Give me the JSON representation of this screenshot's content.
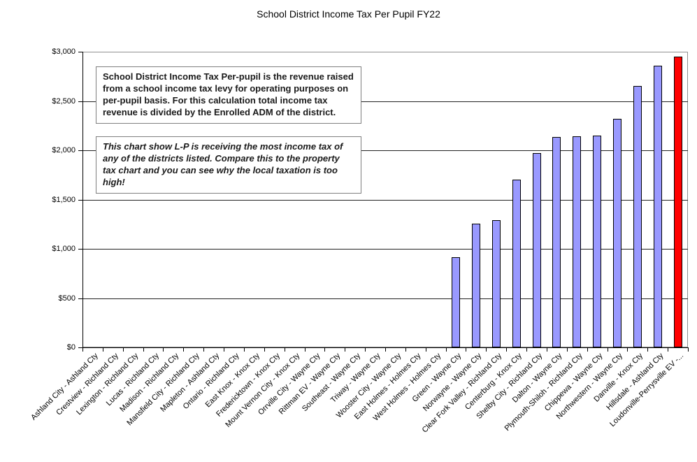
{
  "title": "School District Income Tax Per Pupil FY22",
  "annotations": {
    "box1": "School District Income Tax Per-pupil is the revenue raised from a school income tax levy for operating purposes on per-pupil basis. For this calculation total income tax revenue is divided by the Enrolled ADM of the district.",
    "box2": "This chart show L-P is receiving the most income tax of any of the districts listed. Compare this to the property tax chart and you can see why the local taxation is too high!"
  },
  "colors": {
    "bar_fill": "#9999FF",
    "bar_border": "#000000",
    "highlight_fill": "#FF0000",
    "gridline": "#222222",
    "plot_border": "#909090",
    "axis": "#000000"
  },
  "chart_data": {
    "type": "bar",
    "title": "School District Income Tax Per Pupil FY22",
    "categories": [
      "Ashland City - Ashland Cty",
      "Crestview - Richland Cty",
      "Lexington - Richland Cty",
      "Lucas - Richland Cty",
      "Madison - Richland Cty",
      "Mansfield City - Richland Cty",
      "Mapleton - Ashland Cty",
      "Ontario - Richland Cty",
      "East Knox - Knox Cty",
      "Fredericktown - Knox Cty",
      "Mount Vernon City - Knox Cty",
      "Orrville City - Wayne Cty",
      "Rittman EV - Wayne Cty",
      "Southeast - Wayne Cty",
      "Triway - Wayne Cty",
      "Wooster City - Wayne Cty",
      "East Holmes - Holmes Cty",
      "West Holmes - Holmes Cty",
      "Green - Wayne Cty",
      "Norwayne - Wayne Cty",
      "Clear Fork Valley - Richland Cty",
      "Centerburg - Knox Cty",
      "Shelby City - Richland Cty",
      "Dalton - Wayne Cty",
      "Plymouth-Shiloh - Richland Cty",
      "Chippewa - Wayne Cty",
      "Northwestern - Wayne Cty",
      "Danville - Knox Cty",
      "Hillsdale - Ashland Cty",
      "Loudonville-Perrysville EV -..."
    ],
    "values": [
      0,
      0,
      0,
      0,
      0,
      0,
      0,
      0,
      0,
      0,
      0,
      0,
      0,
      0,
      0,
      0,
      0,
      0,
      915,
      1255,
      1290,
      1700,
      1970,
      2135,
      2140,
      2150,
      2320,
      2650,
      2855,
      2950
    ],
    "highlight_index": 29,
    "xlabel": "",
    "ylabel": "",
    "ylim": [
      0,
      3000
    ],
    "ytick_step": 500,
    "ytick_labels": [
      "$0",
      "$500",
      "$1,000",
      "$1,500",
      "$2,000",
      "$2,500",
      "$3,000"
    ],
    "grid": true,
    "legend": false
  }
}
